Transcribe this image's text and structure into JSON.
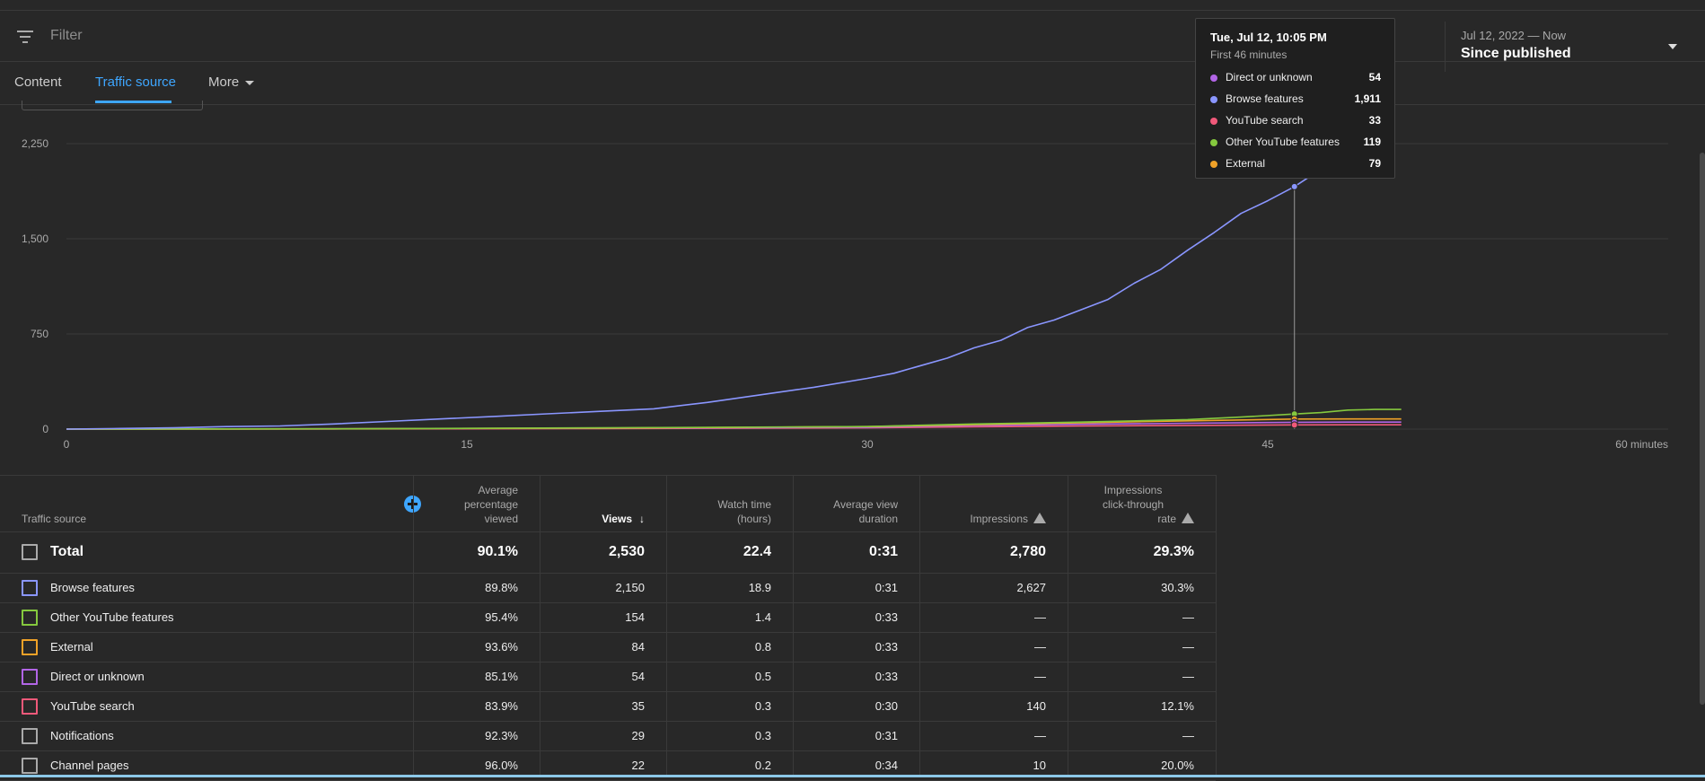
{
  "filter": {
    "placeholder": "Filter"
  },
  "date": {
    "range": "Jul 12, 2022 — Now",
    "period": "Since published"
  },
  "tabs": [
    {
      "label": "Content",
      "active": false
    },
    {
      "label": "Traffic source",
      "active": true
    },
    {
      "label": "More",
      "active": false
    }
  ],
  "tooltip": {
    "date": "Tue, Jul 12, 10:05 PM",
    "subtitle": "First 46 minutes",
    "items": [
      {
        "label": "Direct or unknown",
        "value": "54",
        "color": "#b265e6"
      },
      {
        "label": "Browse features",
        "value": "1,911",
        "color": "#8a96ff"
      },
      {
        "label": "YouTube search",
        "value": "33",
        "color": "#f0597a"
      },
      {
        "label": "Other YouTube features",
        "value": "119",
        "color": "#85c93e"
      },
      {
        "label": "External",
        "value": "79",
        "color": "#f0a228"
      }
    ]
  },
  "chart_data": {
    "type": "line",
    "y_ticks": [
      "2,250",
      "1,500",
      "750",
      "0"
    ],
    "x_ticks": [
      "0",
      "15",
      "30",
      "45",
      "60 minutes"
    ],
    "ylim": [
      0,
      2250
    ],
    "xlim": [
      0,
      60
    ],
    "hover_x": 46,
    "grid": true,
    "series": [
      {
        "name": "Browse features",
        "color": "#8a96ff",
        "x": [
          0,
          2,
          4,
          6,
          8,
          10,
          12,
          14,
          16,
          18,
          20,
          22,
          24,
          26,
          28,
          30,
          31,
          32,
          33,
          34,
          35,
          36,
          37,
          38,
          39,
          40,
          41,
          42,
          43,
          44,
          45,
          46,
          47
        ],
        "y": [
          0,
          5,
          10,
          20,
          25,
          40,
          60,
          80,
          100,
          120,
          140,
          160,
          210,
          270,
          330,
          400,
          440,
          500,
          560,
          640,
          700,
          800,
          860,
          940,
          1020,
          1150,
          1260,
          1410,
          1550,
          1700,
          1800,
          1911,
          2050
        ]
      },
      {
        "name": "Other YouTube features",
        "color": "#85c93e",
        "x": [
          0,
          10,
          20,
          30,
          34,
          38,
          42,
          44,
          46,
          47,
          48,
          49,
          50
        ],
        "y": [
          0,
          2,
          10,
          20,
          40,
          55,
          75,
          95,
          119,
          130,
          150,
          155,
          155
        ]
      },
      {
        "name": "External",
        "color": "#f0a228",
        "x": [
          0,
          10,
          20,
          30,
          34,
          38,
          42,
          46,
          48,
          50
        ],
        "y": [
          0,
          2,
          8,
          20,
          35,
          50,
          65,
          79,
          80,
          80
        ]
      },
      {
        "name": "Direct or unknown",
        "color": "#b265e6",
        "x": [
          0,
          10,
          20,
          30,
          34,
          38,
          42,
          46,
          48,
          50
        ],
        "y": [
          0,
          2,
          8,
          15,
          28,
          38,
          46,
          54,
          55,
          55
        ]
      },
      {
        "name": "YouTube search",
        "color": "#f0597a",
        "x": [
          0,
          10,
          20,
          30,
          34,
          38,
          42,
          46,
          48,
          50
        ],
        "y": [
          0,
          1,
          4,
          10,
          18,
          24,
          29,
          33,
          34,
          34
        ]
      }
    ]
  },
  "table": {
    "headers": {
      "traffic_source": "Traffic source",
      "avg_pct": [
        "Average",
        "percentage",
        "viewed"
      ],
      "views": "Views",
      "watch_time": [
        "Watch time",
        "(hours)"
      ],
      "avg_view_dur": [
        "Average view",
        "duration"
      ],
      "impressions": "Impressions",
      "ctr": [
        "Impressions",
        "click-through",
        "rate"
      ]
    },
    "total": {
      "name": "Total",
      "avg_pct": "90.1%",
      "views": "2,530",
      "watch": "22.4",
      "dur": "0:31",
      "impr": "2,780",
      "ctr": "29.3%"
    },
    "rows": [
      {
        "name": "Browse features",
        "color": "#8a96ff",
        "avg_pct": "89.8%",
        "views": "2,150",
        "watch": "18.9",
        "dur": "0:31",
        "impr": "2,627",
        "ctr": "30.3%"
      },
      {
        "name": "Other YouTube features",
        "color": "#85c93e",
        "avg_pct": "95.4%",
        "views": "154",
        "watch": "1.4",
        "dur": "0:33",
        "impr": "—",
        "ctr": "—"
      },
      {
        "name": "External",
        "color": "#f0a228",
        "avg_pct": "93.6%",
        "views": "84",
        "watch": "0.8",
        "dur": "0:33",
        "impr": "—",
        "ctr": "—"
      },
      {
        "name": "Direct or unknown",
        "color": "#b265e6",
        "avg_pct": "85.1%",
        "views": "54",
        "watch": "0.5",
        "dur": "0:33",
        "impr": "—",
        "ctr": "—"
      },
      {
        "name": "YouTube search",
        "color": "#f0597a",
        "avg_pct": "83.9%",
        "views": "35",
        "watch": "0.3",
        "dur": "0:30",
        "impr": "140",
        "ctr": "12.1%"
      },
      {
        "name": "Notifications",
        "color": "#aaaaaa",
        "avg_pct": "92.3%",
        "views": "29",
        "watch": "0.3",
        "dur": "0:31",
        "impr": "—",
        "ctr": "—"
      },
      {
        "name": "Channel pages",
        "color": "#aaaaaa",
        "avg_pct": "96.0%",
        "views": "22",
        "watch": "0.2",
        "dur": "0:34",
        "impr": "10",
        "ctr": "20.0%"
      }
    ]
  }
}
